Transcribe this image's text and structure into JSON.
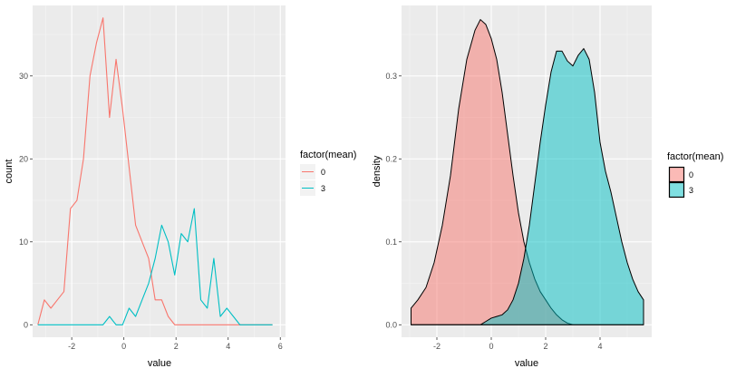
{
  "chart_data": [
    {
      "type": "line",
      "xlabel": "value",
      "ylabel": "count",
      "xlim": [
        -3.5,
        6.2
      ],
      "ylim": [
        -1.5,
        38.5
      ],
      "x_ticks": [
        -2,
        0,
        2,
        4,
        6
      ],
      "y_ticks": [
        0,
        10,
        20,
        30
      ],
      "x_tick_labels": [
        "-2",
        "0",
        "2",
        "4",
        "6"
      ],
      "y_tick_labels": [
        "0",
        "10",
        "20",
        "30"
      ],
      "grid": true,
      "legend": {
        "title": "factor(mean)",
        "placement": "right",
        "entries": [
          "0",
          "3"
        ]
      },
      "series": [
        {
          "name": "0",
          "color": "#F8766D",
          "points": [
            [
              -3.3,
              0
            ],
            [
              -3.05,
              3
            ],
            [
              -2.8,
              2
            ],
            [
              -2.55,
              3
            ],
            [
              -2.3,
              4
            ],
            [
              -2.05,
              14
            ],
            [
              -1.8,
              15
            ],
            [
              -1.55,
              20
            ],
            [
              -1.3,
              30
            ],
            [
              -1.05,
              34
            ],
            [
              -0.8,
              37
            ],
            [
              -0.55,
              25
            ],
            [
              -0.3,
              32
            ],
            [
              -0.05,
              26
            ],
            [
              0.2,
              19
            ],
            [
              0.45,
              12
            ],
            [
              0.7,
              10
            ],
            [
              0.95,
              8
            ],
            [
              1.2,
              3
            ],
            [
              1.45,
              3
            ],
            [
              1.7,
              1
            ],
            [
              1.95,
              0
            ],
            [
              2.2,
              0
            ],
            [
              2.45,
              0
            ],
            [
              2.7,
              0
            ],
            [
              2.95,
              0
            ],
            [
              3.2,
              0
            ],
            [
              3.45,
              0
            ],
            [
              3.7,
              0
            ],
            [
              3.95,
              0
            ],
            [
              4.2,
              0
            ],
            [
              4.45,
              0
            ],
            [
              4.7,
              0
            ],
            [
              4.95,
              0
            ],
            [
              5.2,
              0
            ],
            [
              5.45,
              0
            ],
            [
              5.7,
              0
            ]
          ]
        },
        {
          "name": "3",
          "color": "#00BFC4",
          "points": [
            [
              -3.3,
              0
            ],
            [
              -3.05,
              0
            ],
            [
              -2.8,
              0
            ],
            [
              -2.55,
              0
            ],
            [
              -2.3,
              0
            ],
            [
              -2.05,
              0
            ],
            [
              -1.8,
              0
            ],
            [
              -1.55,
              0
            ],
            [
              -1.3,
              0
            ],
            [
              -1.05,
              0
            ],
            [
              -0.8,
              0
            ],
            [
              -0.55,
              1
            ],
            [
              -0.3,
              0
            ],
            [
              -0.05,
              0
            ],
            [
              0.2,
              2
            ],
            [
              0.45,
              1
            ],
            [
              0.7,
              3
            ],
            [
              0.95,
              5
            ],
            [
              1.2,
              8
            ],
            [
              1.45,
              12
            ],
            [
              1.7,
              10
            ],
            [
              1.95,
              6
            ],
            [
              2.2,
              11
            ],
            [
              2.45,
              10
            ],
            [
              2.7,
              14
            ],
            [
              2.95,
              3
            ],
            [
              3.2,
              2
            ],
            [
              3.45,
              8
            ],
            [
              3.7,
              1
            ],
            [
              3.95,
              2
            ],
            [
              4.2,
              1
            ],
            [
              4.45,
              0
            ],
            [
              4.7,
              0
            ],
            [
              4.95,
              0
            ],
            [
              5.2,
              0
            ],
            [
              5.45,
              0
            ],
            [
              5.7,
              0
            ]
          ]
        }
      ]
    },
    {
      "type": "area",
      "xlabel": "value",
      "ylabel": "density",
      "xlim": [
        -3.3,
        5.9
      ],
      "ylim": [
        -0.015,
        0.385
      ],
      "x_ticks": [
        -2,
        0,
        2,
        4
      ],
      "y_ticks": [
        0.0,
        0.1,
        0.2,
        0.3
      ],
      "x_tick_labels": [
        "-2",
        "0",
        "2",
        "4"
      ],
      "y_tick_labels": [
        "0.0",
        "0.1",
        "0.2",
        "0.3"
      ],
      "grid": true,
      "legend": {
        "title": "factor(mean)",
        "placement": "right",
        "entries": [
          "0",
          "3"
        ]
      },
      "series": [
        {
          "name": "0",
          "color": "#F8766D",
          "points": [
            [
              -2.95,
              0.02
            ],
            [
              -2.7,
              0.03
            ],
            [
              -2.4,
              0.045
            ],
            [
              -2.1,
              0.075
            ],
            [
              -1.8,
              0.12
            ],
            [
              -1.5,
              0.18
            ],
            [
              -1.2,
              0.26
            ],
            [
              -0.9,
              0.32
            ],
            [
              -0.6,
              0.355
            ],
            [
              -0.4,
              0.368
            ],
            [
              -0.2,
              0.362
            ],
            [
              0.0,
              0.345
            ],
            [
              0.2,
              0.32
            ],
            [
              0.4,
              0.28
            ],
            [
              0.6,
              0.23
            ],
            [
              0.8,
              0.18
            ],
            [
              1.0,
              0.135
            ],
            [
              1.2,
              0.1
            ],
            [
              1.4,
              0.075
            ],
            [
              1.6,
              0.055
            ],
            [
              1.8,
              0.04
            ],
            [
              2.0,
              0.03
            ],
            [
              2.2,
              0.02
            ],
            [
              2.4,
              0.012
            ],
            [
              2.6,
              0.006
            ],
            [
              2.8,
              0.002
            ],
            [
              3.0,
              0.0
            ],
            [
              5.6,
              0.0
            ]
          ]
        },
        {
          "name": "3",
          "color": "#00BFC4",
          "points": [
            [
              -2.95,
              0.0
            ],
            [
              -0.4,
              0.0
            ],
            [
              -0.2,
              0.004
            ],
            [
              0.0,
              0.008
            ],
            [
              0.2,
              0.01
            ],
            [
              0.4,
              0.012
            ],
            [
              0.6,
              0.018
            ],
            [
              0.8,
              0.03
            ],
            [
              1.0,
              0.05
            ],
            [
              1.2,
              0.08
            ],
            [
              1.4,
              0.12
            ],
            [
              1.6,
              0.17
            ],
            [
              1.8,
              0.22
            ],
            [
              2.0,
              0.265
            ],
            [
              2.2,
              0.305
            ],
            [
              2.4,
              0.33
            ],
            [
              2.6,
              0.33
            ],
            [
              2.8,
              0.318
            ],
            [
              3.0,
              0.312
            ],
            [
              3.2,
              0.325
            ],
            [
              3.4,
              0.333
            ],
            [
              3.6,
              0.32
            ],
            [
              3.8,
              0.28
            ],
            [
              4.0,
              0.22
            ],
            [
              4.2,
              0.185
            ],
            [
              4.4,
              0.16
            ],
            [
              4.6,
              0.13
            ],
            [
              4.8,
              0.1
            ],
            [
              5.0,
              0.075
            ],
            [
              5.2,
              0.055
            ],
            [
              5.4,
              0.04
            ],
            [
              5.6,
              0.03
            ]
          ]
        }
      ]
    }
  ]
}
